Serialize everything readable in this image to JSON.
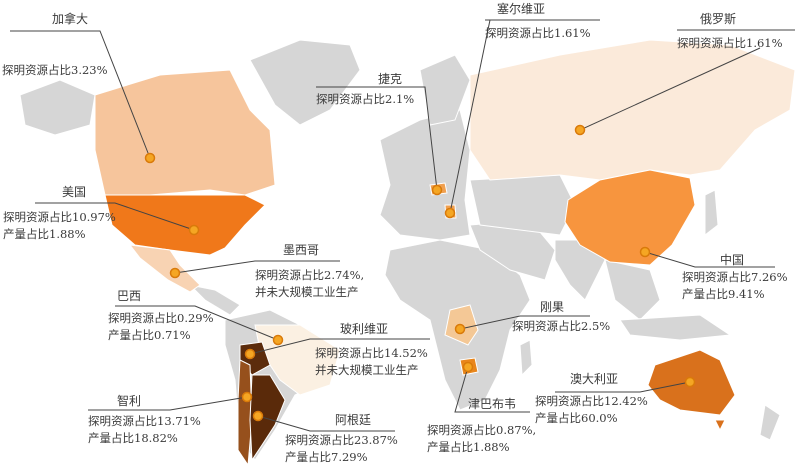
{
  "colors": {
    "land": "#d6d6d6",
    "border": "#ffffff",
    "leader": "#444444",
    "dot": "#f5a623",
    "dot_ring": "#d97a0a"
  },
  "countries": [
    {
      "id": "canada",
      "name": "加拿大",
      "lines": [
        "探明资源占比3.23%"
      ],
      "fill": "#f6c59c"
    },
    {
      "id": "serbia",
      "name": "塞尔维亚",
      "lines": [
        "探明资源占比1.61%"
      ],
      "fill": "#f0a050"
    },
    {
      "id": "russia",
      "name": "俄罗斯",
      "lines": [
        "探明资源占比1.61%"
      ],
      "fill": "#fbeada"
    },
    {
      "id": "czech",
      "name": "捷克",
      "lines": [
        "探明资源占比2.1%"
      ],
      "fill": "#f0a050"
    },
    {
      "id": "usa",
      "name": "美国",
      "lines": [
        "探明资源占比10.97%",
        "产量占比1.88%"
      ],
      "fill": "#f0781a"
    },
    {
      "id": "mexico",
      "name": "墨西哥",
      "lines": [
        "探明资源占比2.74%,",
        "并未大规模工业生产"
      ],
      "fill": "#f8d3b3"
    },
    {
      "id": "brazil",
      "name": "巴西",
      "lines": [
        "探明资源占比0.29%",
        "产量占比0.71%"
      ],
      "fill": "#fbf0e2"
    },
    {
      "id": "bolivia",
      "name": "玻利维亚",
      "lines": [
        "探明资源占比14.52%",
        "并未大规模工业生产"
      ],
      "fill": "#5c2c0c"
    },
    {
      "id": "chile",
      "name": "智利",
      "lines": [
        "探明资源占比13.71%",
        "产量占比18.82%"
      ],
      "fill": "#96501c"
    },
    {
      "id": "argentina",
      "name": "阿根廷",
      "lines": [
        "探明资源占比23.87%",
        "产量占比7.29%"
      ],
      "fill": "#5a2a0a"
    },
    {
      "id": "congo",
      "name": "刚果",
      "lines": [
        "探明资源占比2.5%"
      ],
      "fill": "#f4c896"
    },
    {
      "id": "zimbabwe",
      "name": "津巴布韦",
      "lines": [
        "探明资源占比0.87%,",
        "产量占比1.88%"
      ],
      "fill": "#e8861c"
    },
    {
      "id": "australia",
      "name": "澳大利亚",
      "lines": [
        "探明资源占比12.42%",
        "产量占比60.0%"
      ],
      "fill": "#d9711c"
    },
    {
      "id": "china",
      "name": "中国",
      "lines": [
        "探明资源占比7.26%",
        "产量占比9.41%"
      ],
      "fill": "#f7953e"
    }
  ]
}
